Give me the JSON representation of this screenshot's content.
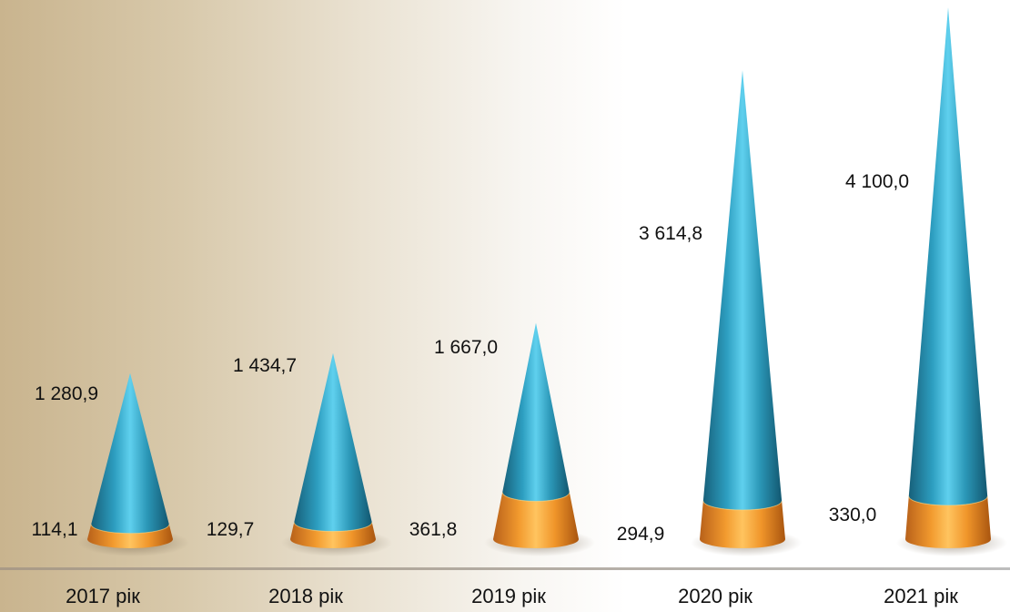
{
  "chart_data": {
    "type": "bar",
    "categories": [
      "2017 рік",
      "2018 рік",
      "2019 рік",
      "2020 рік",
      "2021 рік"
    ],
    "series": [
      {
        "values": [
          114.1,
          129.7,
          361.8,
          294.9,
          330.0
        ],
        "labels": [
          "114,1",
          "129,7",
          "361,8",
          "294,9",
          "330,0"
        ],
        "color": "#f39a2e"
      },
      {
        "values": [
          1280.9,
          1434.7,
          1667.0,
          3614.8,
          4100.0
        ],
        "labels": [
          "1 280,9",
          "1 434,7",
          "1 667,0",
          "3 614,8",
          "4 100,0"
        ],
        "color": "#2f9fbf"
      }
    ],
    "stacked": true,
    "shape": "cone",
    "ylim": [
      0,
      5500
    ],
    "grid": false,
    "legend": "none"
  }
}
